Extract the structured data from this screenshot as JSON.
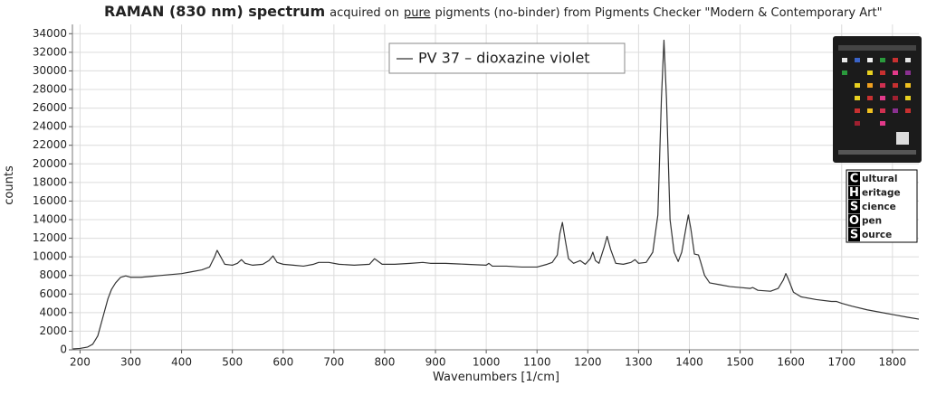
{
  "chart_data": {
    "type": "line",
    "title": "RAMAN (830 nm) spectrum",
    "subtitle": [
      "acquired on",
      "pure",
      "pigments (no-binder) from Pigments Checker \"Modern & Contemporary Art\""
    ],
    "x_label": "Wavenumbers [1/cm]",
    "y_label": "counts",
    "xlim": [
      185,
      1852
    ],
    "ylim": [
      0,
      35000
    ],
    "xticks": [
      200,
      300,
      400,
      500,
      600,
      700,
      800,
      900,
      1000,
      1100,
      1200,
      1300,
      1400,
      1500,
      1600,
      1700,
      1800
    ],
    "yticks": [
      0,
      2000,
      4000,
      6000,
      8000,
      10000,
      12000,
      14000,
      16000,
      18000,
      20000,
      22000,
      24000,
      26000,
      28000,
      30000,
      32000,
      34000
    ],
    "grid": true,
    "x": [
      186,
      200,
      215,
      225,
      235,
      245,
      255,
      262,
      270,
      280,
      290,
      300,
      320,
      340,
      360,
      380,
      400,
      420,
      440,
      455,
      465,
      470,
      475,
      485,
      500,
      510,
      518,
      525,
      540,
      560,
      572,
      580,
      588,
      600,
      620,
      640,
      660,
      670,
      690,
      710,
      740,
      770,
      780,
      785,
      795,
      820,
      850,
      875,
      890,
      920,
      960,
      1000,
      1005,
      1012,
      1040,
      1070,
      1100,
      1120,
      1130,
      1140,
      1145,
      1150,
      1155,
      1162,
      1172,
      1185,
      1195,
      1205,
      1210,
      1215,
      1222,
      1232,
      1238,
      1245,
      1255,
      1270,
      1285,
      1293,
      1300,
      1315,
      1328,
      1338,
      1345,
      1350,
      1355,
      1362,
      1370,
      1378,
      1385,
      1393,
      1398,
      1403,
      1410,
      1418,
      1422,
      1430,
      1440,
      1460,
      1480,
      1500,
      1520,
      1525,
      1535,
      1560,
      1575,
      1585,
      1590,
      1595,
      1605,
      1620,
      1650,
      1680,
      1690,
      1700,
      1720,
      1750,
      1780,
      1800,
      1830,
      1852
    ],
    "series": [
      {
        "name": "PV 37 – dioxazine violet",
        "color": "#333333",
        "values": [
          100,
          150,
          300,
          600,
          1500,
          3500,
          5500,
          6500,
          7200,
          7800,
          7950,
          7800,
          7800,
          7900,
          8000,
          8100,
          8200,
          8400,
          8600,
          8900,
          10000,
          10700,
          10200,
          9200,
          9100,
          9300,
          9700,
          9300,
          9100,
          9200,
          9600,
          10100,
          9400,
          9200,
          9100,
          9000,
          9200,
          9400,
          9400,
          9200,
          9100,
          9200,
          9800,
          9600,
          9200,
          9200,
          9300,
          9400,
          9300,
          9300,
          9200,
          9100,
          9300,
          9000,
          9000,
          8900,
          8900,
          9200,
          9400,
          10200,
          12500,
          13700,
          12000,
          9800,
          9300,
          9600,
          9200,
          9800,
          10500,
          9600,
          9300,
          11000,
          12200,
          10800,
          9300,
          9200,
          9400,
          9700,
          9300,
          9400,
          10500,
          14500,
          27000,
          33300,
          27000,
          14000,
          10500,
          9500,
          10500,
          13000,
          14500,
          13000,
          10300,
          10200,
          9500,
          8000,
          7200,
          7000,
          6800,
          6700,
          6600,
          6700,
          6400,
          6300,
          6600,
          7500,
          8200,
          7600,
          6200,
          5700,
          5400,
          5200,
          5200,
          5000,
          4700,
          4300,
          4000,
          3800,
          3500,
          3300
        ]
      }
    ]
  },
  "logo": {
    "letters": [
      "C",
      "H",
      "S",
      "O",
      "S"
    ],
    "words": [
      "ultural",
      "eritage",
      "cience",
      "pen",
      "ource"
    ]
  }
}
